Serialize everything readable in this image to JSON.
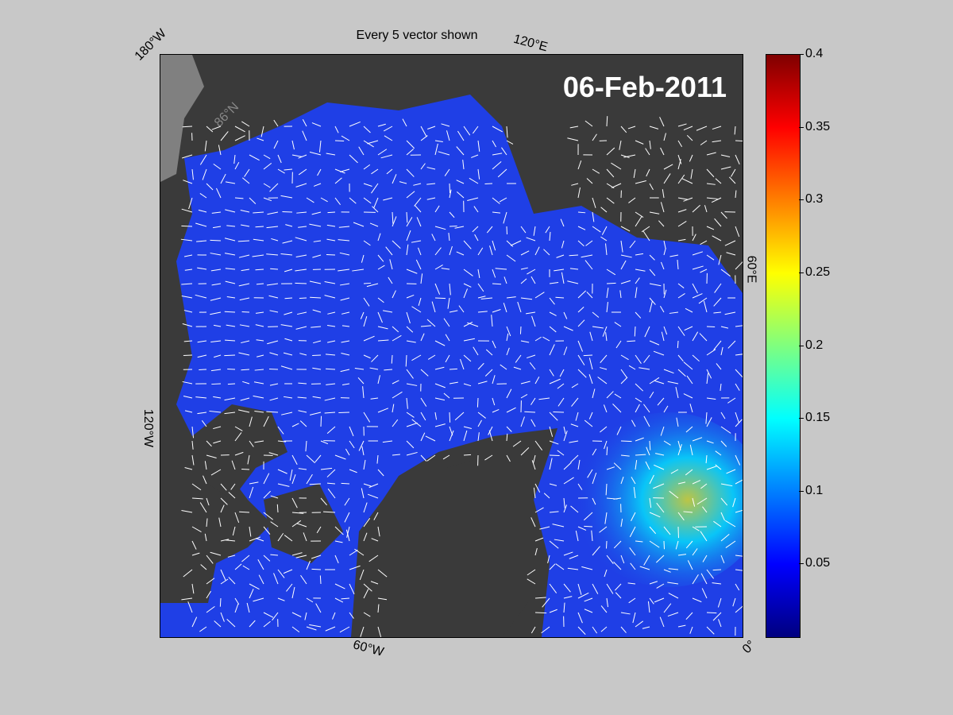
{
  "title": "Every 5 vector shown",
  "date": "06-Feb-2011",
  "labels": {
    "lon_180w": "180°W",
    "lon_120e": "120°E",
    "lat_86n": "86°N",
    "lon_60e": "60°E",
    "lon_120w": "120°W",
    "lon_60w": "60°W",
    "lon_0": "0°"
  },
  "colorbar": {
    "colormap": "jet",
    "range": [
      0,
      0.4
    ],
    "ticks": [
      "0.05",
      "0.1",
      "0.15",
      "0.2",
      "0.25",
      "0.3",
      "0.35",
      "0.4"
    ]
  },
  "colors": {
    "ocean_ice": "#1f3fe6",
    "land": "#3a3a3a",
    "background": "#c8c8c8",
    "vectors": "#ffffff"
  }
}
